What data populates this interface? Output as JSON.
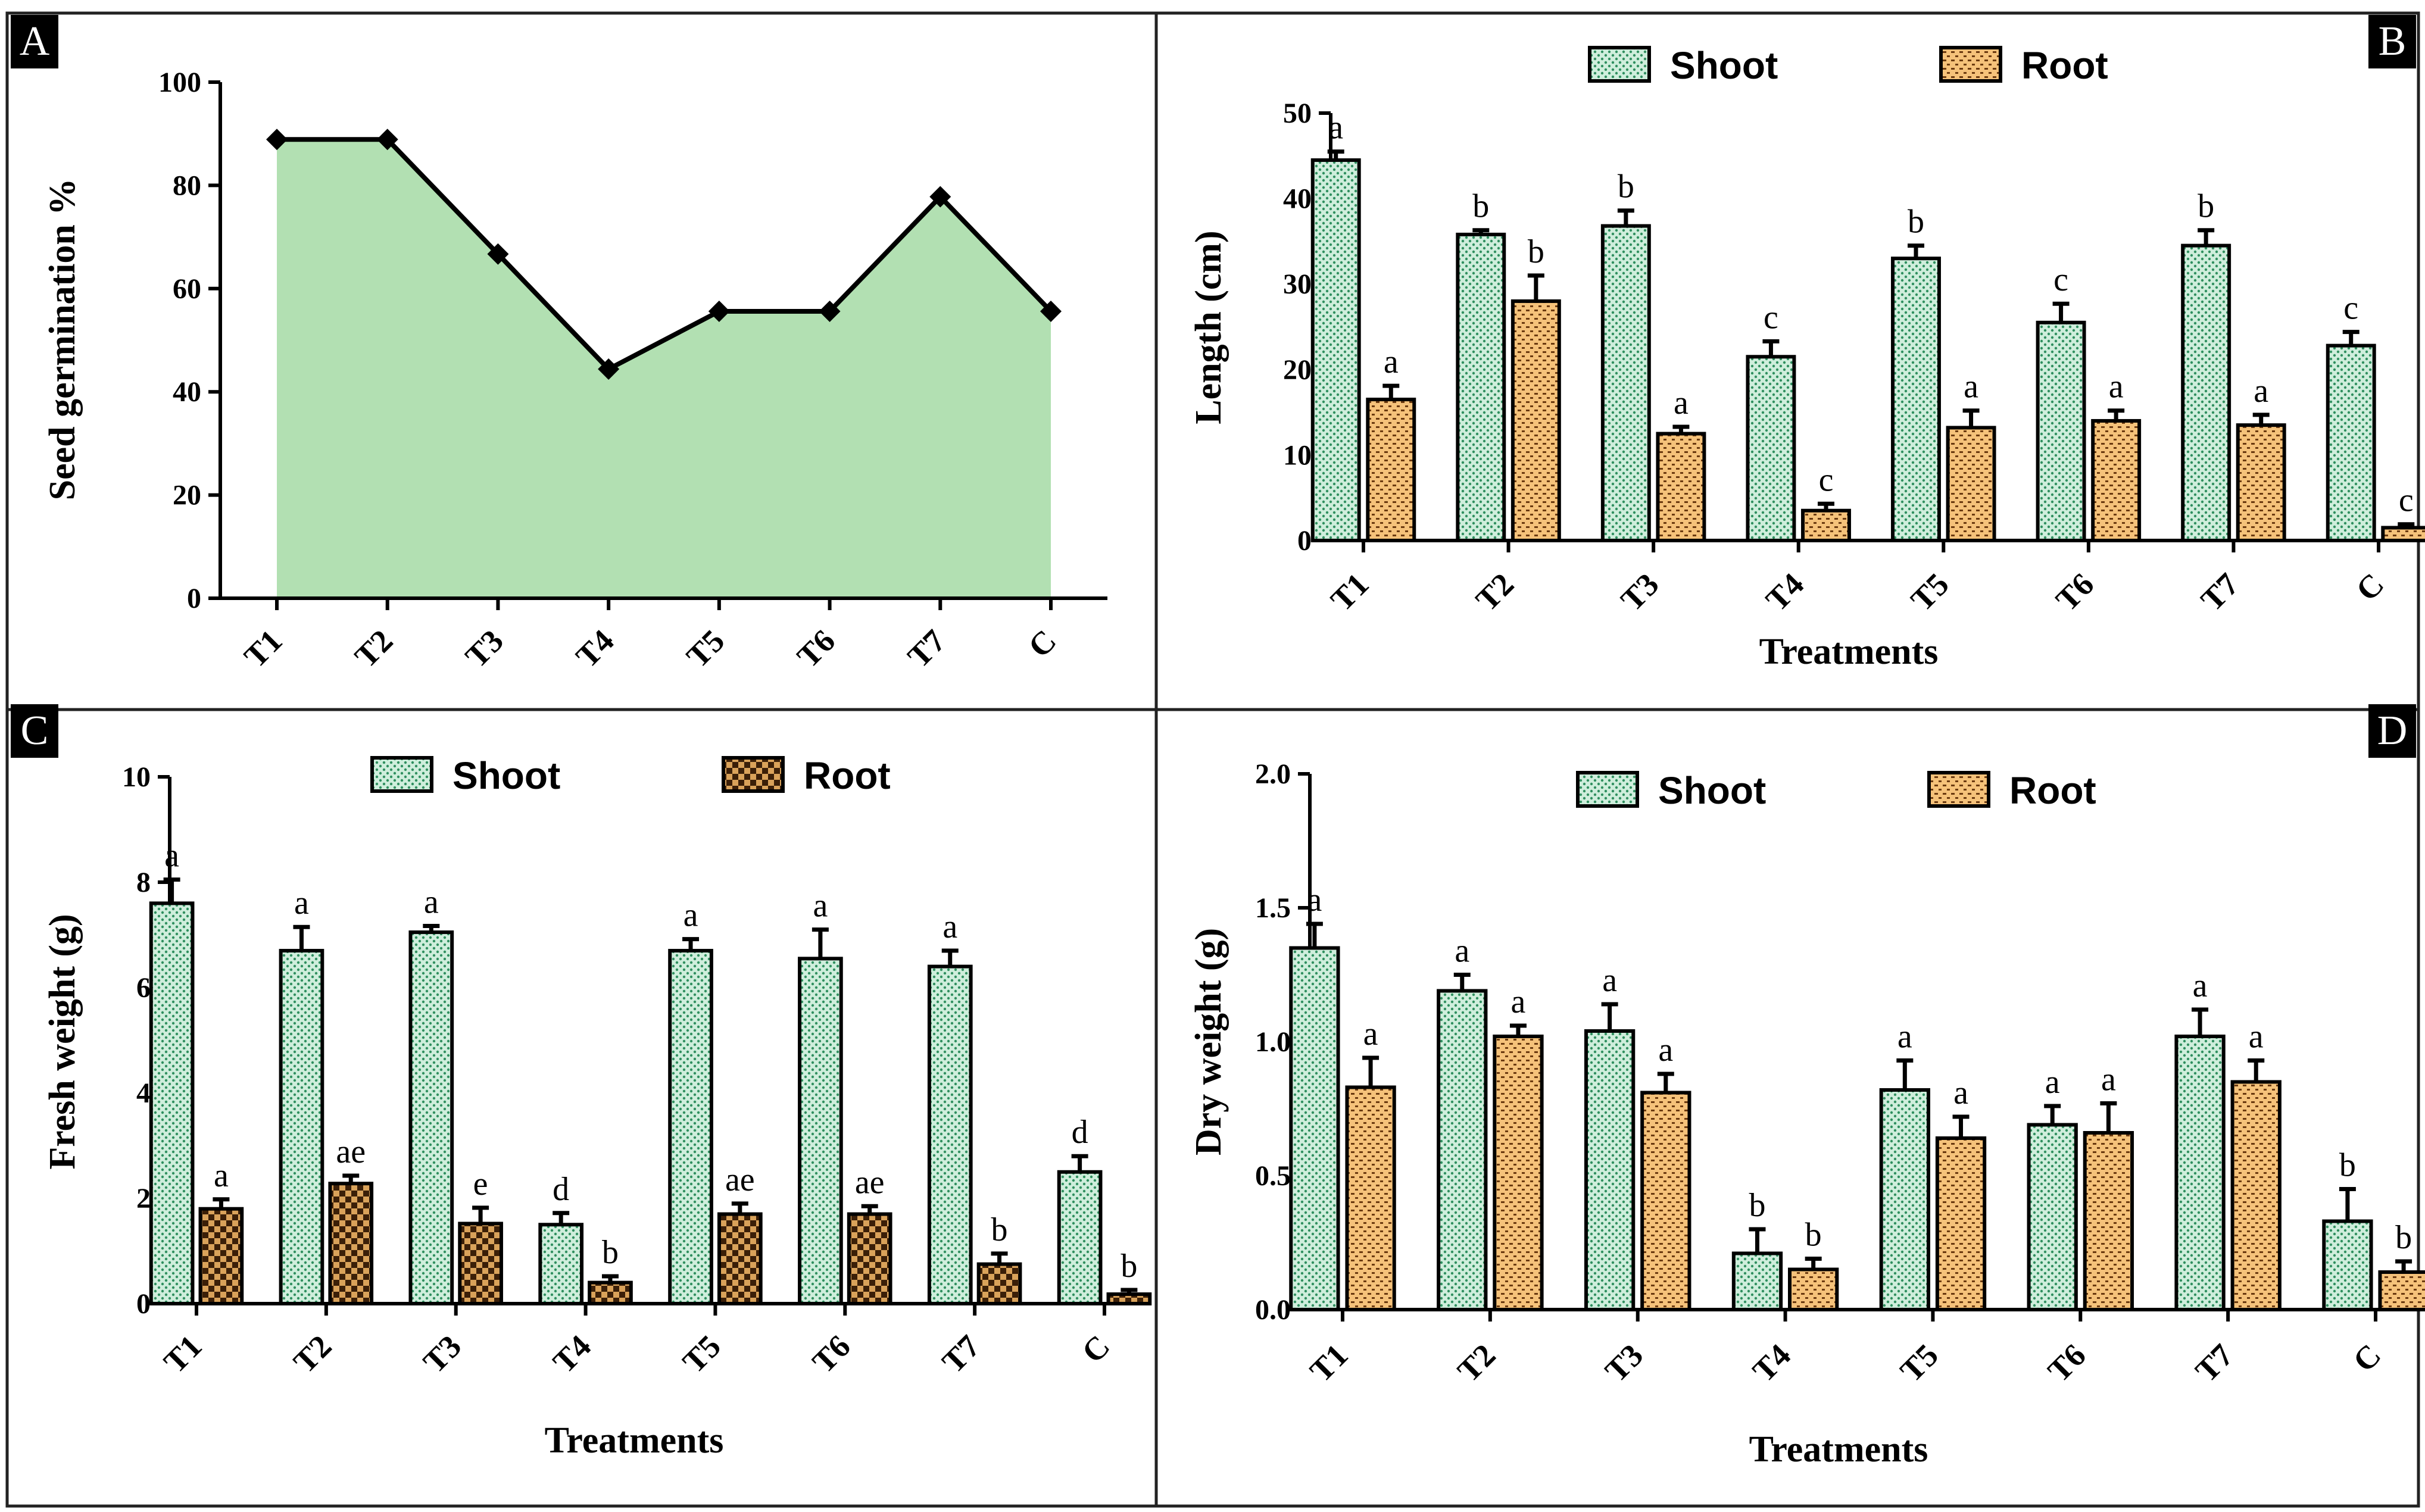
{
  "colors": {
    "area_fill": "#b2e0b2",
    "shoot_base": "#cfeedc",
    "shoot_dot": "#2f8f5f",
    "root_base": "#f5c27a",
    "root_dot": "#6b3a10",
    "root_check_base": "#d9a25a",
    "root_check_dark": "#3b1f08",
    "tag_bg": "#000000"
  },
  "chart_data": [
    {
      "panel": "A",
      "type": "area",
      "categories": [
        "T1",
        "T2",
        "T3",
        "T4",
        "T5",
        "T6",
        "T7",
        "C"
      ],
      "values": [
        88.9,
        88.9,
        66.7,
        44.4,
        55.6,
        55.6,
        77.8,
        55.6
      ],
      "ylabel": "Seed germination %",
      "xlabel": "",
      "ylim": [
        0,
        100
      ],
      "yticks": [
        "0",
        "20",
        "40",
        "60",
        "80",
        "100"
      ],
      "grid": false
    },
    {
      "panel": "B",
      "type": "bar",
      "categories": [
        "T1",
        "T2",
        "T3",
        "T4",
        "T5",
        "T6",
        "T7",
        "C"
      ],
      "series": [
        {
          "name": "Shoot",
          "pattern": "dots",
          "values": [
            44.5,
            35.8,
            36.8,
            21.5,
            33.0,
            25.5,
            34.5,
            22.8
          ],
          "errors": [
            1.0,
            0.5,
            1.8,
            1.8,
            1.5,
            2.2,
            1.8,
            1.6
          ],
          "letters": [
            "a",
            "b",
            "b",
            "c",
            "b",
            "c",
            "b",
            "c"
          ]
        },
        {
          "name": "Root",
          "pattern": "dashes",
          "values": [
            16.5,
            28.0,
            12.5,
            3.5,
            13.2,
            14.0,
            13.5,
            1.5
          ],
          "errors": [
            1.6,
            3.0,
            0.8,
            0.8,
            2.0,
            1.2,
            1.2,
            0.4
          ],
          "letters": [
            "a",
            "b",
            "a",
            "c",
            "a",
            "a",
            "a",
            "c"
          ]
        }
      ],
      "xlabel": "Treatments",
      "ylabel": "Length (cm)",
      "ylim": [
        0,
        50
      ],
      "yticks": [
        "0",
        "10",
        "20",
        "30",
        "40",
        "50"
      ],
      "legend": "top"
    },
    {
      "panel": "C",
      "type": "bar",
      "categories": [
        "T1",
        "T2",
        "T3",
        "T4",
        "T5",
        "T6",
        "T7",
        "C"
      ],
      "series": [
        {
          "name": "Shoot",
          "pattern": "dots",
          "values": [
            7.6,
            6.7,
            7.05,
            1.5,
            6.7,
            6.55,
            6.4,
            2.5
          ],
          "errors": [
            0.45,
            0.45,
            0.12,
            0.22,
            0.22,
            0.55,
            0.3,
            0.3
          ],
          "letters": [
            "a",
            "a",
            "a",
            "d",
            "a",
            "a",
            "a",
            "d"
          ]
        },
        {
          "name": "Root",
          "pattern": "checker",
          "values": [
            1.8,
            2.28,
            1.52,
            0.4,
            1.7,
            1.7,
            0.75,
            0.18
          ],
          "errors": [
            0.18,
            0.15,
            0.3,
            0.12,
            0.2,
            0.15,
            0.2,
            0.08
          ],
          "letters": [
            "a",
            "ae",
            "e",
            "b",
            "ae",
            "ae",
            "b",
            "b"
          ]
        }
      ],
      "xlabel": "Treatments",
      "ylabel": "Fresh weight (g)",
      "ylim": [
        0,
        10
      ],
      "yticks": [
        "0",
        "2",
        "4",
        "6",
        "8",
        "10"
      ],
      "legend": "top"
    },
    {
      "panel": "D",
      "type": "bar",
      "categories": [
        "T1",
        "T2",
        "T3",
        "T4",
        "T5",
        "T6",
        "T7",
        "C"
      ],
      "series": [
        {
          "name": "Shoot",
          "pattern": "dots",
          "values": [
            1.35,
            1.19,
            1.04,
            0.21,
            0.82,
            0.69,
            1.02,
            0.33
          ],
          "errors": [
            0.09,
            0.06,
            0.1,
            0.09,
            0.11,
            0.07,
            0.1,
            0.12
          ],
          "letters": [
            "a",
            "a",
            "a",
            "b",
            "a",
            "a",
            "a",
            "b"
          ]
        },
        {
          "name": "Root",
          "pattern": "dashes",
          "values": [
            0.83,
            1.02,
            0.81,
            0.15,
            0.64,
            0.66,
            0.85,
            0.14
          ],
          "errors": [
            0.11,
            0.04,
            0.07,
            0.04,
            0.08,
            0.11,
            0.08,
            0.04
          ],
          "letters": [
            "a",
            "a",
            "a",
            "b",
            "a",
            "a",
            "a",
            "b"
          ]
        }
      ],
      "xlabel": "Treatments",
      "ylabel": "Dry weight (g)",
      "ylim": [
        0,
        2.0
      ],
      "yticks": [
        "0.0",
        "0.5",
        "1.0",
        "1.5",
        "2.0"
      ],
      "legend": "top"
    }
  ]
}
